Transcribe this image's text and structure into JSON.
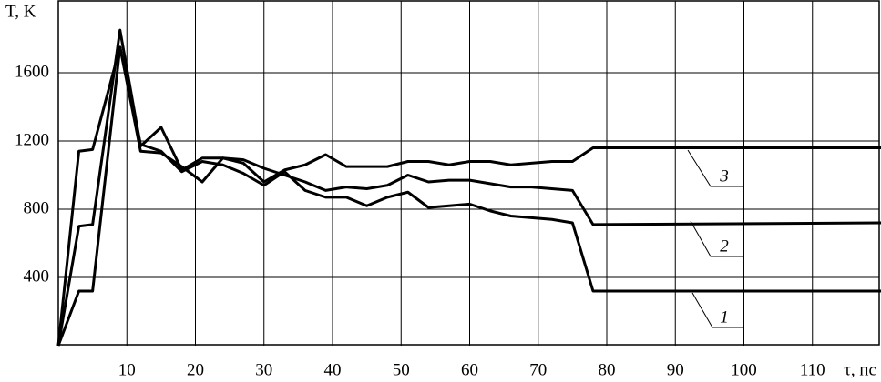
{
  "chart_data": {
    "type": "line",
    "ylabel": "T, K",
    "xlabel": "τ, пс",
    "xlim": [
      0,
      120
    ],
    "ylim": [
      0,
      2000
    ],
    "xticks": [
      10,
      20,
      30,
      40,
      50,
      60,
      70,
      80,
      90,
      100,
      110
    ],
    "yticks": [
      400,
      800,
      1200,
      1600
    ],
    "grid": true,
    "x": [
      0,
      3,
      5,
      9,
      12,
      15,
      18,
      21,
      24,
      27,
      30,
      33,
      36,
      39,
      42,
      45,
      48,
      51,
      54,
      57,
      60,
      63,
      66,
      69,
      72,
      75,
      78,
      120
    ],
    "series": [
      {
        "name": "1",
        "color": "#000000",
        "values": [
          0,
          320,
          320,
          1750,
          1180,
          1140,
          1020,
          1080,
          1060,
          1010,
          940,
          1020,
          910,
          870,
          870,
          820,
          870,
          900,
          810,
          820,
          830,
          790,
          760,
          750,
          740,
          720,
          320,
          320
        ]
      },
      {
        "name": "2",
        "color": "#000000",
        "values": [
          0,
          700,
          710,
          1850,
          1170,
          1280,
          1030,
          1100,
          1100,
          1090,
          1040,
          1000,
          960,
          910,
          930,
          920,
          940,
          1000,
          960,
          970,
          970,
          950,
          930,
          930,
          920,
          910,
          710,
          720
        ]
      },
      {
        "name": "3",
        "color": "#000000",
        "values": [
          0,
          1140,
          1150,
          1750,
          1140,
          1130,
          1050,
          960,
          1100,
          1070,
          960,
          1030,
          1060,
          1120,
          1050,
          1050,
          1050,
          1080,
          1080,
          1060,
          1080,
          1080,
          1060,
          1070,
          1080,
          1080,
          1160,
          1160
        ]
      }
    ]
  }
}
